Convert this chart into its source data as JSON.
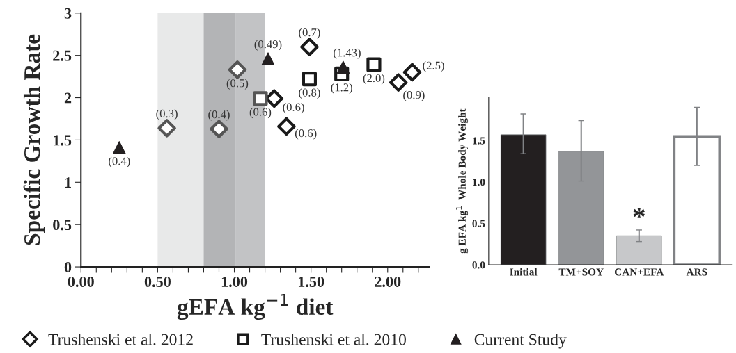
{
  "chart_data": [
    {
      "type": "scatter",
      "xlabel": "gEFA kg$^{−1}$ diet",
      "ylabel": "Specific Growth Rate",
      "xlim": [
        0,
        2.27
      ],
      "ylim": [
        0,
        3
      ],
      "xticks": [
        {
          "value": 0,
          "label": "0.00"
        },
        {
          "value": 0.1,
          "label": null
        },
        {
          "value": 0.2,
          "label": null
        },
        {
          "value": 0.3,
          "label": null
        },
        {
          "value": 0.4,
          "label": null
        },
        {
          "value": 0.5,
          "label": "0.50"
        },
        {
          "value": 0.6,
          "label": null
        },
        {
          "value": 0.7,
          "label": null
        },
        {
          "value": 0.8,
          "label": null
        },
        {
          "value": 0.9,
          "label": null
        },
        {
          "value": 1.0,
          "label": "1.00"
        },
        {
          "value": 1.1,
          "label": null
        },
        {
          "value": 1.2,
          "label": null
        },
        {
          "value": 1.3,
          "label": null
        },
        {
          "value": 1.4,
          "label": null
        },
        {
          "value": 1.5,
          "label": "1.50"
        },
        {
          "value": 1.6,
          "label": null
        },
        {
          "value": 1.7,
          "label": null
        },
        {
          "value": 1.8,
          "label": null
        },
        {
          "value": 1.9,
          "label": null
        },
        {
          "value": 2.0,
          "label": "2.00"
        },
        {
          "value": 2.1,
          "label": null
        },
        {
          "value": 2.2,
          "label": null
        }
      ],
      "yticks": [
        0,
        0.5,
        1,
        1.5,
        2,
        2.5,
        3
      ],
      "legend": "bottom",
      "grid": false,
      "bands": [
        {
          "axis": "x",
          "from": 0.5,
          "to": 0.8,
          "color": "#e8e9e9"
        },
        {
          "axis": "x",
          "from": 0.8,
          "to": 1.01,
          "color": "#b3b4b6"
        },
        {
          "axis": "x",
          "from": 1.01,
          "to": 1.2,
          "color": "#c2c3c5"
        }
      ],
      "series": [
        {
          "name": "Trushenski et al. 2012",
          "marker": "diamond",
          "color": "#1a1a1a",
          "colors": [
            "#555555",
            "#555555",
            "#555555",
            "#1a1a1a",
            "#1a1a1a",
            "#1a1a1a",
            "#1a1a1a",
            "#1a1a1a"
          ],
          "x": [
            0.56,
            0.9,
            1.02,
            1.26,
            1.34,
            1.49,
            2.07,
            2.16
          ],
          "values": [
            1.64,
            1.63,
            2.33,
            1.99,
            1.66,
            2.6,
            2.18,
            2.3
          ]
        },
        {
          "name": "Trushenski et al. 2010",
          "marker": "square",
          "color": "#1a1a1a",
          "colors": [
            "#555555",
            "#1a1a1a",
            "#1a1a1a",
            "#1a1a1a"
          ],
          "x": [
            1.17,
            1.49,
            1.7,
            1.91
          ],
          "values": [
            1.99,
            2.22,
            2.28,
            2.39
          ]
        },
        {
          "name": "Current Study",
          "marker": "triangle",
          "color": "#231f20",
          "x": [
            0.25,
            1.22,
            1.71
          ],
          "values": [
            1.41,
            2.46,
            2.36
          ]
        }
      ],
      "annotations": [
        {
          "text": "(0.4)",
          "x": 0.25,
          "y": 1.41
        },
        {
          "text": "(0.49)",
          "x": 1.22,
          "y": 2.46
        },
        {
          "text": "(1.43)",
          "x": 1.71,
          "y": 2.36
        },
        {
          "text": "(0.3)",
          "x": 0.56,
          "y": 1.64
        },
        {
          "text": "(0.4)",
          "x": 0.9,
          "y": 1.63
        },
        {
          "text": "(0.5)",
          "x": 1.02,
          "y": 2.33
        },
        {
          "text": "(0.6)",
          "x": 1.26,
          "y": 1.99
        },
        {
          "text": "(0.6)",
          "x": 1.34,
          "y": 1.66
        },
        {
          "text": "(0.7)",
          "x": 1.49,
          "y": 2.6
        },
        {
          "text": "(0.9)",
          "x": 2.07,
          "y": 2.18
        },
        {
          "text": "(2.5)",
          "x": 2.16,
          "y": 2.3
        },
        {
          "text": "(0.6)",
          "x": 1.17,
          "y": 1.99
        },
        {
          "text": "(0.8)",
          "x": 1.49,
          "y": 2.22
        },
        {
          "text": "(1.2)",
          "x": 1.7,
          "y": 2.28
        },
        {
          "text": "(2.0)",
          "x": 1.91,
          "y": 2.39
        }
      ]
    },
    {
      "type": "bar",
      "ylabel": "g EFA kg$^{1}$  Whole Body Weight",
      "categories": [
        "Initial",
        "TM+SOY",
        "CAN+EFA",
        "ARS"
      ],
      "values": [
        1.57,
        1.37,
        0.35,
        1.55
      ],
      "errors": [
        [
          1.34,
          1.82
        ],
        [
          1.01,
          1.74
        ],
        [
          0.28,
          0.42
        ],
        [
          1.2,
          1.9
        ]
      ],
      "colors": [
        "#231f20",
        "#939598",
        "#c7c8ca",
        "#ffffff"
      ],
      "ylim": [
        0,
        2.02
      ],
      "yticks": [
        {
          "value": 0,
          "label": "0.0"
        },
        {
          "value": 0.5,
          "label": "0.5"
        },
        {
          "value": 1.0,
          "label": "1.0"
        },
        {
          "value": 1.5,
          "label": "1.5"
        }
      ],
      "grid": false,
      "legend": false,
      "annotations": [
        "*"
      ]
    }
  ]
}
